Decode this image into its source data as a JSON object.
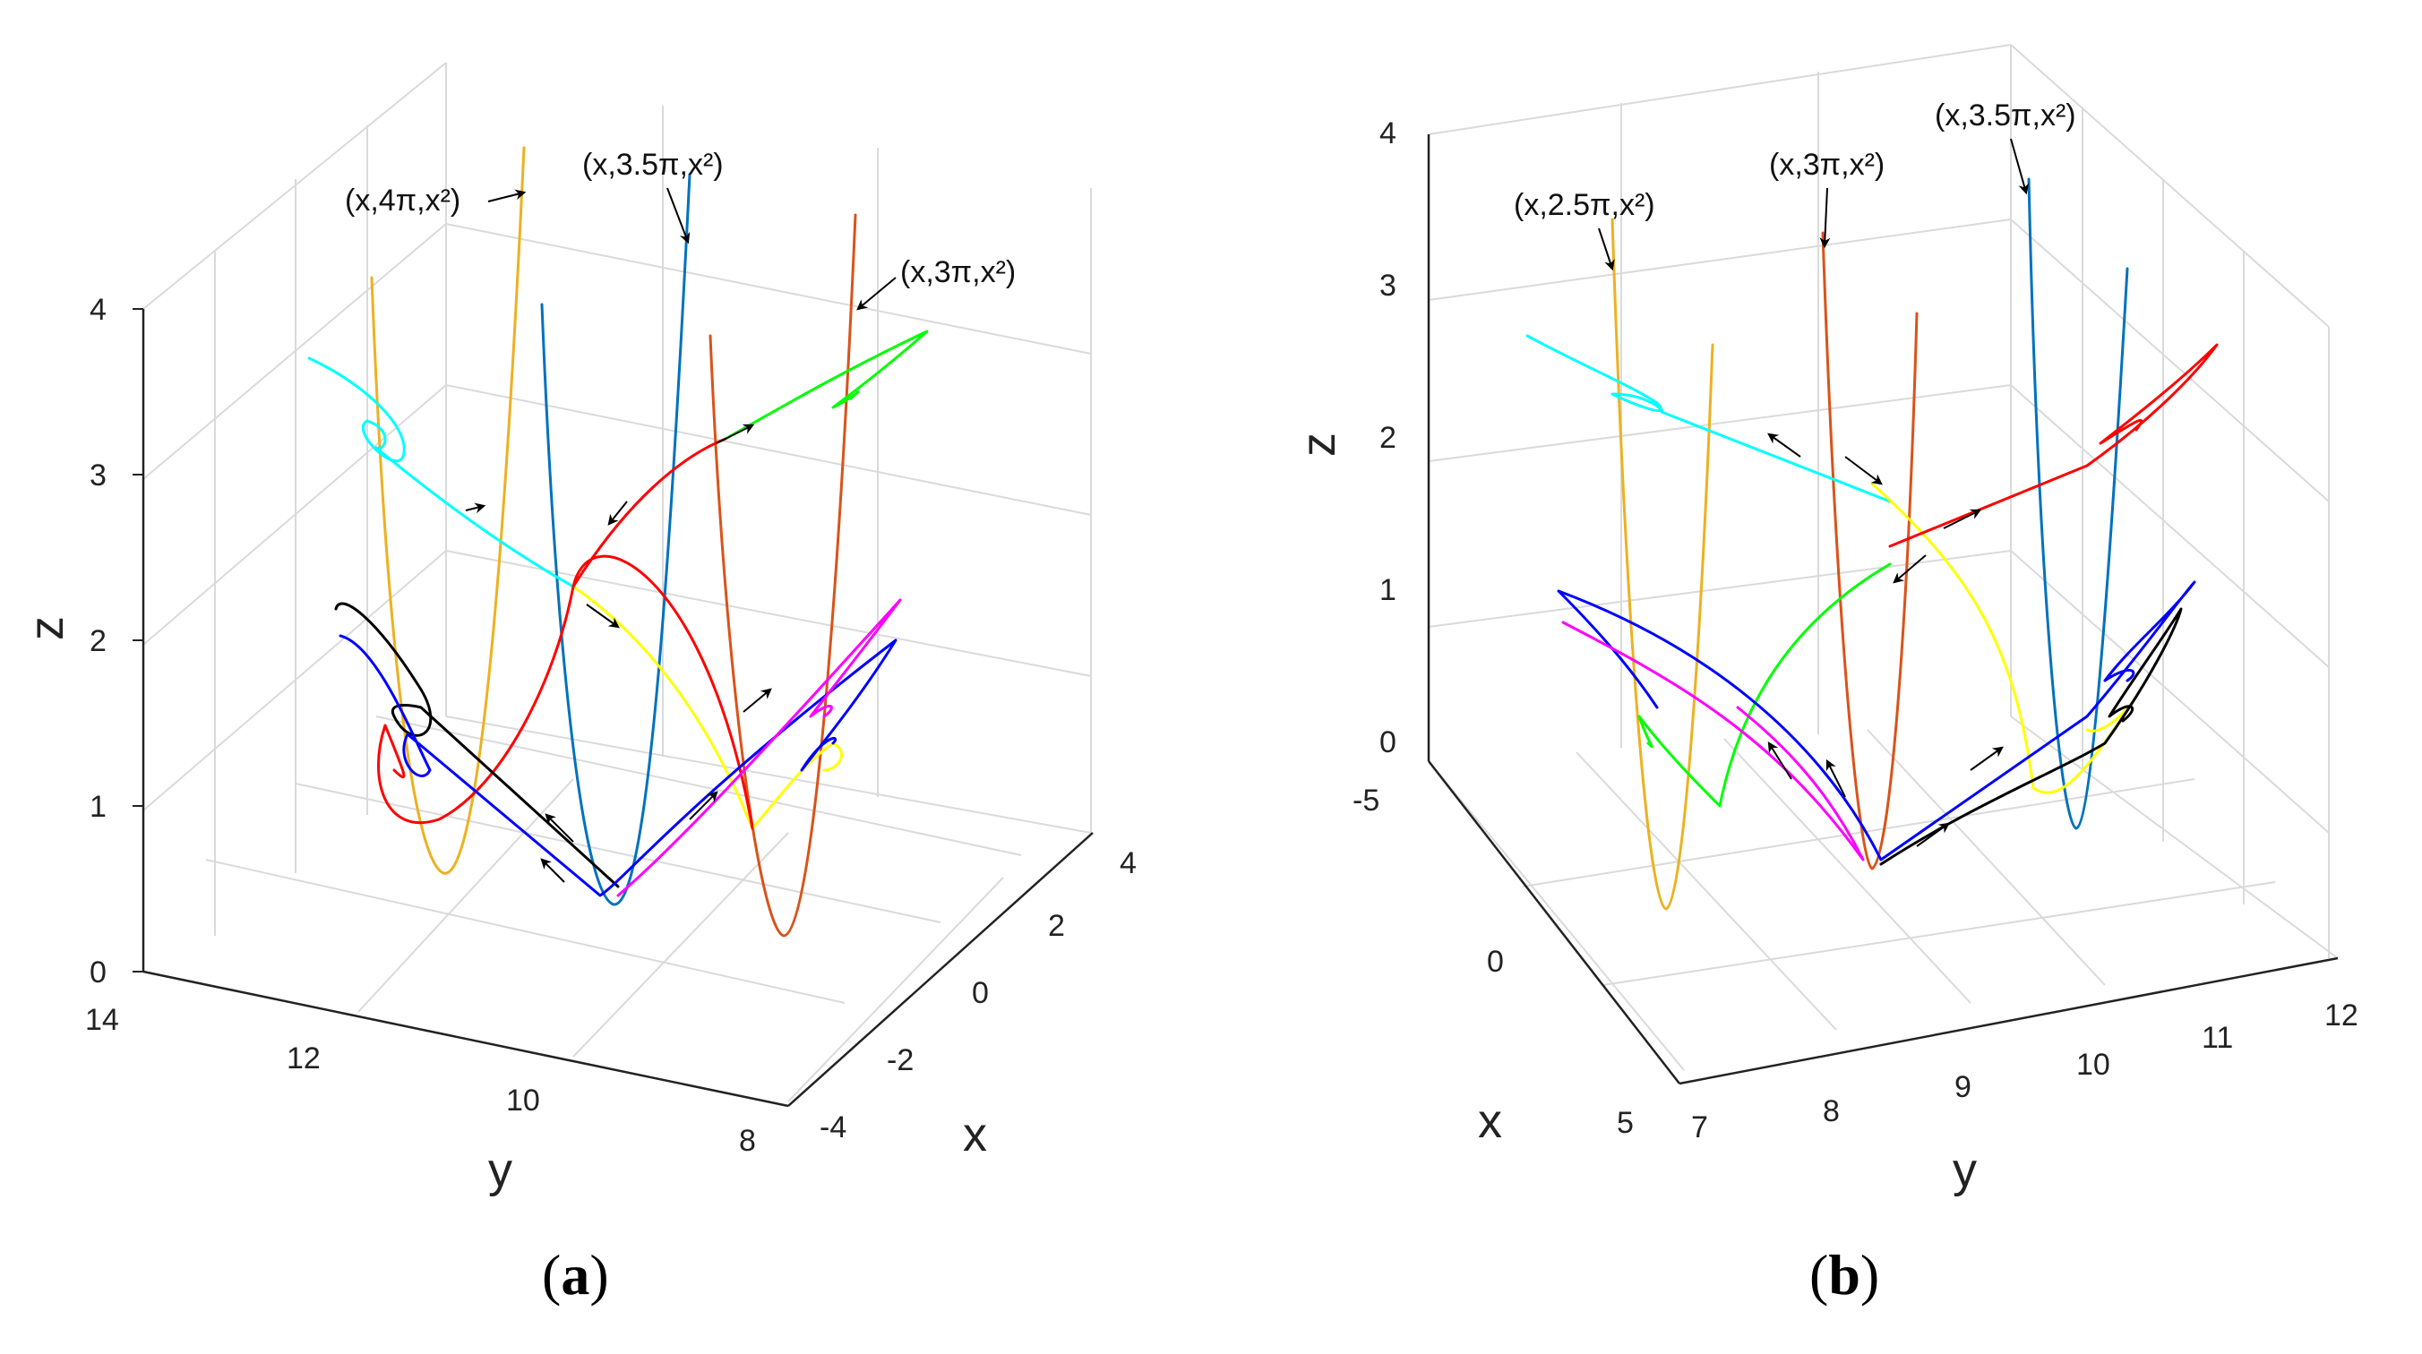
{
  "figure": {
    "panels": [
      {
        "id": "a",
        "caption": "a"
      },
      {
        "id": "b",
        "caption": "b"
      }
    ]
  },
  "chart_data": [
    {
      "type": "line",
      "subtype": "3d-parametric",
      "panel": "a",
      "xlabel": "x",
      "ylabel": "y",
      "zlabel": "z",
      "xlim": [
        -4,
        4
      ],
      "ylim": [
        8,
        14
      ],
      "zlim": [
        0,
        4
      ],
      "xticks": [
        -4,
        -2,
        0,
        2,
        4
      ],
      "yticks": [
        14,
        12,
        10,
        8
      ],
      "zticks": [
        0,
        1,
        2,
        3,
        4
      ],
      "grid": true,
      "annotations": [
        {
          "text": "(x,4π,x²)",
          "points_to": "orange parabola"
        },
        {
          "text": "(x,3.5π,x²)",
          "points_to": "blue parabola"
        },
        {
          "text": "(x,3π,x²)",
          "points_to": "red-orange parabola"
        }
      ],
      "series": [
        {
          "name": "(x,4π,x²)",
          "color": "#EDB120",
          "kind": "parabola",
          "y": 12.566
        },
        {
          "name": "(x,3.5π,x²)",
          "color": "#0072BD",
          "kind": "parabola",
          "y": 10.996
        },
        {
          "name": "(x,3π,x²)",
          "color": "#D95319",
          "kind": "parabola",
          "y": 9.425
        },
        {
          "name": "trajectory-cyan",
          "color": "#00FFFF"
        },
        {
          "name": "trajectory-yellow",
          "color": "#FFFF00"
        },
        {
          "name": "trajectory-red",
          "color": "#FF0000"
        },
        {
          "name": "trajectory-green",
          "color": "#00FF00"
        },
        {
          "name": "trajectory-black",
          "color": "#000000"
        },
        {
          "name": "trajectory-blue",
          "color": "#0000FF"
        },
        {
          "name": "trajectory-magenta",
          "color": "#FF00FF"
        }
      ]
    },
    {
      "type": "line",
      "subtype": "3d-parametric",
      "panel": "b",
      "xlabel": "x",
      "ylabel": "y",
      "zlabel": "z",
      "xlim": [
        -5,
        5
      ],
      "ylim": [
        7,
        12
      ],
      "zlim": [
        0,
        4
      ],
      "xticks": [
        -5,
        0,
        5
      ],
      "yticks": [
        7,
        8,
        9,
        10,
        11,
        12
      ],
      "zticks": [
        0,
        1,
        2,
        3,
        4
      ],
      "grid": true,
      "annotations": [
        {
          "text": "(x,2.5π,x²)",
          "points_to": "orange parabola"
        },
        {
          "text": "(x,3π,x²)",
          "points_to": "red-orange parabola"
        },
        {
          "text": "(x,3.5π,x²)",
          "points_to": "blue parabola"
        }
      ],
      "series": [
        {
          "name": "(x,2.5π,x²)",
          "color": "#EDB120",
          "kind": "parabola",
          "y": 7.854
        },
        {
          "name": "(x,3π,x²)",
          "color": "#D95319",
          "kind": "parabola",
          "y": 9.425
        },
        {
          "name": "(x,3.5π,x²)",
          "color": "#0072BD",
          "kind": "parabola",
          "y": 10.996
        },
        {
          "name": "trajectory-cyan",
          "color": "#00FFFF"
        },
        {
          "name": "trajectory-yellow",
          "color": "#FFFF00"
        },
        {
          "name": "trajectory-red",
          "color": "#FF0000"
        },
        {
          "name": "trajectory-green",
          "color": "#00FF00"
        },
        {
          "name": "trajectory-black",
          "color": "#000000"
        },
        {
          "name": "trajectory-blue",
          "color": "#0000FF"
        },
        {
          "name": "trajectory-magenta",
          "color": "#FF00FF"
        }
      ]
    }
  ]
}
